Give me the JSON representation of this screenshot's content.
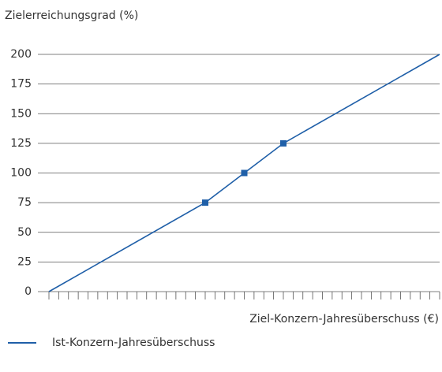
{
  "chart_data": {
    "type": "line",
    "y_label": "Zielerreichungsgrad (%)",
    "x_label": "Ziel-Konzern-Jahresüberschuss (€)",
    "x": [
      0,
      80,
      100,
      120,
      200
    ],
    "series": [
      {
        "name": "Ist-Konzern-Jahresüberschuss",
        "color": "#1f5fa8",
        "values": [
          0,
          75,
          100,
          125,
          200
        ],
        "markers": [
          1,
          2,
          3
        ]
      }
    ],
    "xlim": [
      0,
      200
    ],
    "xticks": [
      0,
      5,
      10,
      15,
      20,
      25,
      30,
      35,
      40,
      45,
      50,
      55,
      60,
      65,
      70,
      75,
      80,
      85,
      90,
      95,
      100,
      105,
      110,
      115,
      120,
      125,
      130,
      135,
      140,
      145,
      150,
      155,
      160,
      165,
      170,
      175,
      180,
      185,
      190,
      195,
      200
    ],
    "xtick_labels": false,
    "ylim": [
      0,
      200
    ],
    "yticks": [
      0,
      25,
      50,
      75,
      100,
      125,
      150,
      175,
      200
    ],
    "grid": true,
    "legend": "bottom-left"
  }
}
